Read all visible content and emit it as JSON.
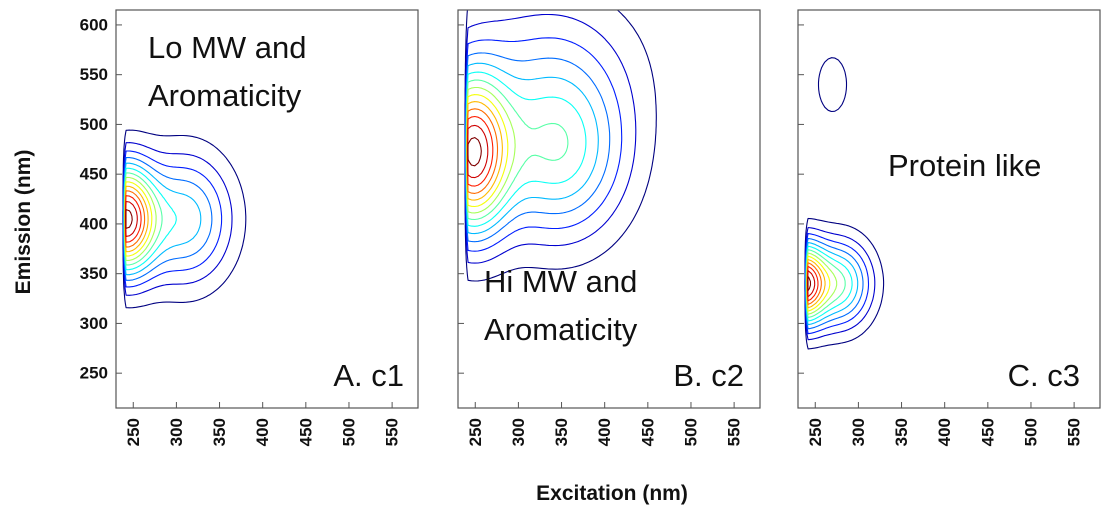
{
  "figure": {
    "ylabel": "Emission (nm)",
    "xlabel": "Excitation (nm)"
  },
  "chart_data": [
    {
      "type": "contour",
      "panel_label": "A. c1",
      "annotation_lines": [
        "Lo MW and",
        "Aromaticity"
      ],
      "xlabel": "Excitation (nm)",
      "ylabel": "Emission (nm)",
      "xlim": [
        230,
        580
      ],
      "ylim": [
        215,
        615
      ],
      "xticks": [
        250,
        300,
        350,
        400,
        450,
        500,
        550
      ],
      "yticks": [
        250,
        300,
        350,
        400,
        450,
        500,
        550,
        600
      ],
      "peaks": [
        {
          "ex": 240,
          "em": 405,
          "intensity": 1.0,
          "ex_spread": 24,
          "em_spread": 38
        },
        {
          "ex": 310,
          "em": 405,
          "intensity": 0.42,
          "ex_spread": 38,
          "em_spread": 45
        }
      ],
      "contour_levels": 14,
      "ex_cutoff": 240
    },
    {
      "type": "contour",
      "panel_label": "B. c2",
      "annotation_lines": [
        "Hi MW and",
        "Aromaticity"
      ],
      "xlabel": "Excitation (nm)",
      "ylabel": "Emission (nm)",
      "xlim": [
        230,
        580
      ],
      "ylim": [
        215,
        615
      ],
      "xticks": [
        250,
        300,
        350,
        400,
        450,
        500,
        550
      ],
      "yticks": [
        250,
        300,
        350,
        400,
        450,
        500,
        550,
        600
      ],
      "peaks": [
        {
          "ex": 245,
          "em": 470,
          "intensity": 1.0,
          "ex_spread": 30,
          "em_spread": 55
        },
        {
          "ex": 345,
          "em": 470,
          "intensity": 0.5,
          "ex_spread": 55,
          "em_spread": 60
        },
        {
          "ex": 330,
          "em": 560,
          "intensity": 0.18,
          "ex_spread": 80,
          "em_spread": 60
        }
      ],
      "contour_levels": 14,
      "ex_cutoff": 240
    },
    {
      "type": "contour",
      "panel_label": "C. c3",
      "annotation_lines": [
        "Protein like"
      ],
      "xlabel": "Excitation (nm)",
      "ylabel": "Emission (nm)",
      "xlim": [
        230,
        580
      ],
      "ylim": [
        215,
        615
      ],
      "xticks": [
        250,
        300,
        350,
        400,
        450,
        500,
        550
      ],
      "yticks": [
        250,
        300,
        350,
        400,
        450,
        500,
        550,
        600
      ],
      "peaks": [
        {
          "ex": 235,
          "em": 340,
          "intensity": 1.0,
          "ex_spread": 18,
          "em_spread": 28
        },
        {
          "ex": 278,
          "em": 340,
          "intensity": 0.55,
          "ex_spread": 26,
          "em_spread": 30
        },
        {
          "ex": 270,
          "em": 540,
          "intensity": 0.12,
          "ex_spread": 18,
          "em_spread": 30
        }
      ],
      "contour_levels": 14,
      "ex_cutoff": 240
    }
  ]
}
